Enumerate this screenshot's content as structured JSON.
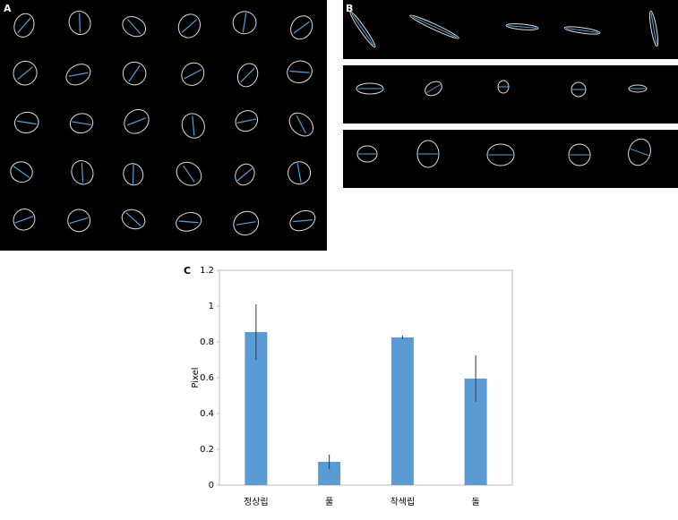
{
  "panel_labels": [
    "A",
    "B",
    "C"
  ],
  "chart_data": {
    "type": "bar",
    "y_label": "Pixel",
    "categories": [
      "정상립",
      "풀",
      "착색립",
      "돌"
    ],
    "values": [
      0.855,
      0.13,
      0.825,
      0.595
    ],
    "errors": [
      0.155,
      0.04,
      0.01,
      0.13
    ],
    "color": "#5b9bd5",
    "ylim": [
      0,
      1.2
    ],
    "yticks": [
      0,
      0.2,
      0.4,
      0.6,
      0.8,
      1,
      1.2
    ],
    "grid": false
  }
}
